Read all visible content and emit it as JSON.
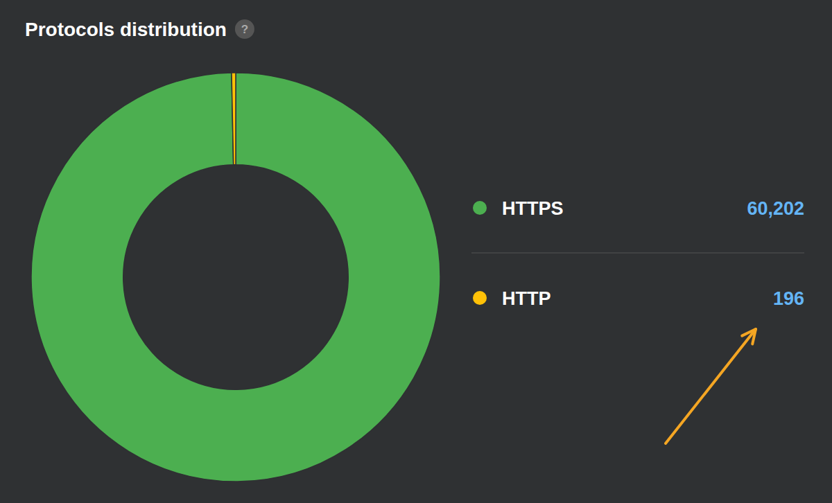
{
  "chart_data": {
    "type": "pie",
    "title": "Protocols distribution",
    "annotations": [
      "?"
    ],
    "categories": [
      "HTTPS",
      "HTTP"
    ],
    "values": [
      60202,
      196
    ],
    "value_labels": [
      "60,202",
      "196"
    ],
    "colors": [
      "#4caf50",
      "#ffc107"
    ],
    "legend": "right"
  }
}
